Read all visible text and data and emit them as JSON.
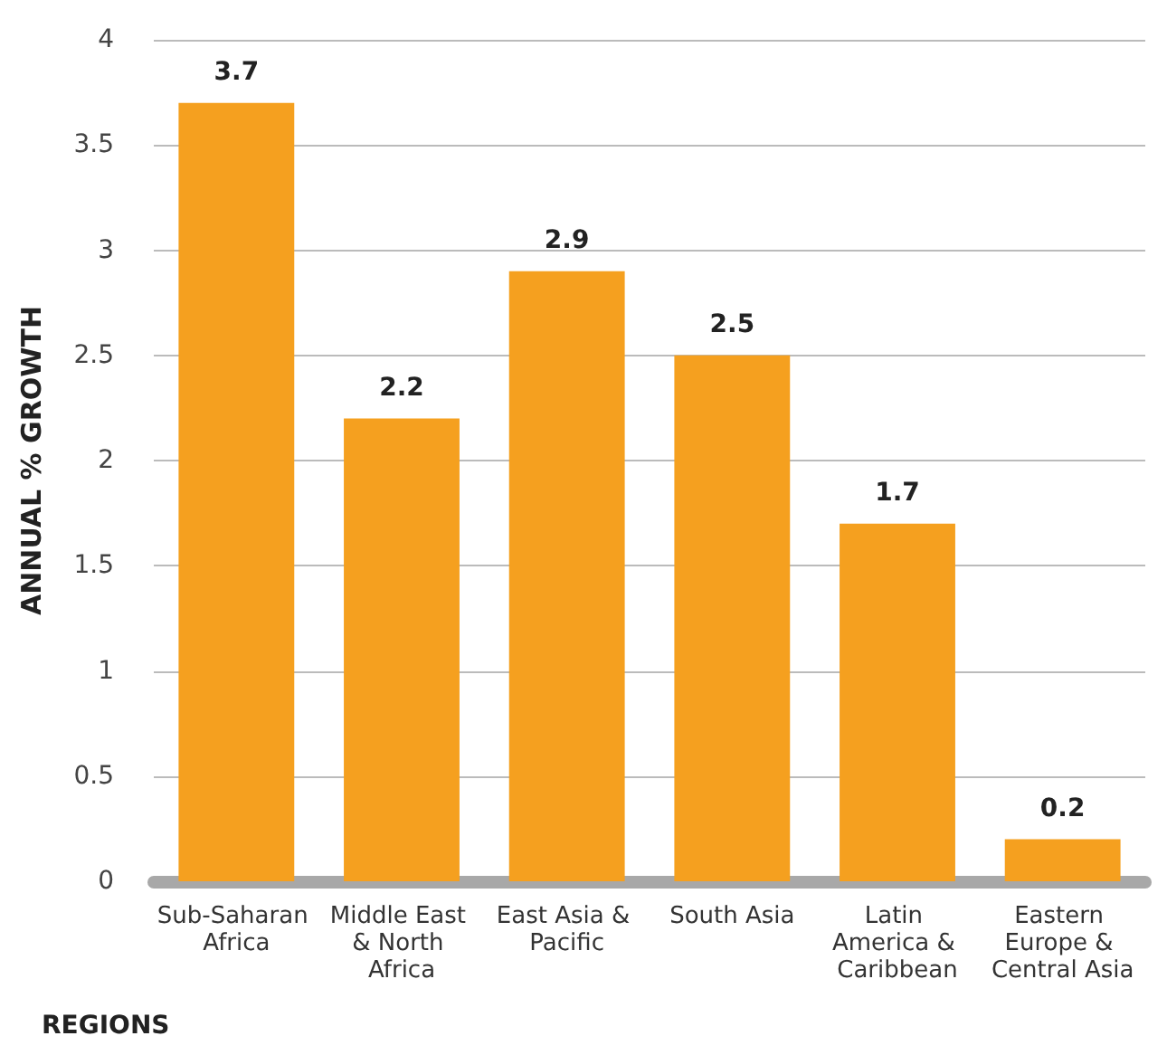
{
  "chart_data": {
    "type": "bar",
    "xlabel": "REGIONS",
    "ylabel": "ANNUAL % GROWTH",
    "categories": [
      "Sub-Saharan Africa",
      "Middle East & North Africa",
      "East Asia & Pacific",
      "South Asia",
      "Latin America & Caribbean",
      "Eastern Europe & Central Asia"
    ],
    "values": [
      3.7,
      2.2,
      2.9,
      2.5,
      1.7,
      0.2
    ],
    "color": "#f5a01f",
    "ylim": [
      0,
      4
    ],
    "yticks": [
      0,
      0.5,
      1,
      1.5,
      2,
      2.5,
      3,
      3.5,
      4
    ],
    "grid": "y",
    "data_labels": true
  }
}
